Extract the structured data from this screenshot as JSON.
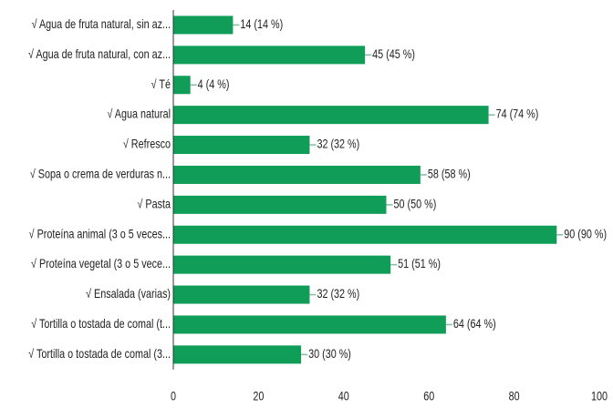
{
  "chart_data": {
    "type": "bar",
    "orientation": "horizontal",
    "color": "#0f9d58",
    "categories": [
      "√ Agua de fruta natural, sin az...",
      "√ Agua de fruta natural, con az...",
      "√ Té",
      "√ Agua natural",
      "√ Refresco",
      "√ Sopa o crema de verduras n...",
      "√ Pasta",
      "√ Proteína animal (3 o 5 veces...",
      "√ Proteína vegetal (3 o 5 vece...",
      "√ Ensalada (varias)",
      "√ Tortilla o tostada de comal (t...",
      "√ Tortilla o tostada de comal (3..."
    ],
    "values": [
      14,
      45,
      4,
      74,
      32,
      58,
      50,
      90,
      51,
      32,
      64,
      30
    ],
    "value_labels": [
      "14 (14 %)",
      "45 (45 %)",
      "4 (4 %)",
      "74 (74 %)",
      "32 (32 %)",
      "58 (58 %)",
      "50 (50 %)",
      "90 (90 %)",
      "51 (51 %)",
      "32 (32 %)",
      "64 (64 %)",
      "30 (30 %)"
    ],
    "xlim": [
      0,
      100
    ],
    "xticks": [
      0,
      20,
      40,
      60,
      80,
      100
    ]
  }
}
